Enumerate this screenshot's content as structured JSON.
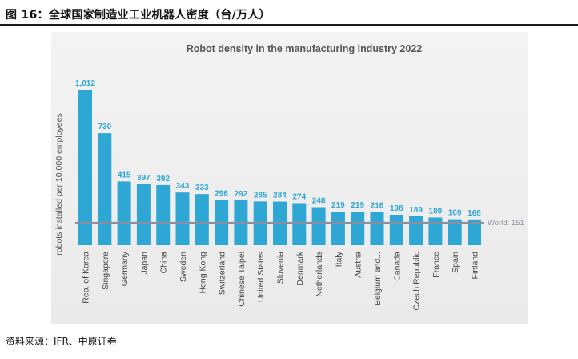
{
  "figure": {
    "caption": "图 16：全球国家制造业工业机器人密度（台/万人）",
    "source": "资料来源：IFR、中原证券"
  },
  "colors": {
    "bar": "#2ea7d4",
    "value_label": "#2ea7d4",
    "world_line": "#8a8fa0",
    "panel_bg": "#efefef"
  },
  "chart_data": {
    "type": "bar",
    "title": "Robot density in the manufacturing industry 2022",
    "xlabel": "",
    "ylabel": "robots installed per 10,000 employees",
    "categories": [
      "Rep. of Korea",
      "Singapore",
      "Germany",
      "Japan",
      "China",
      "Sweden",
      "Hong Kong",
      "Switzerland",
      "Chinese Taipei",
      "United States",
      "Slovenia",
      "Denmark",
      "Netherlands",
      "Italy",
      "Austria",
      "Belgium and...",
      "Canada",
      "Czech Republic",
      "France",
      "Spain",
      "Finland"
    ],
    "values": [
      1012,
      730,
      415,
      397,
      392,
      343,
      333,
      296,
      292,
      285,
      284,
      274,
      248,
      219,
      219,
      216,
      198,
      189,
      180,
      169,
      168
    ],
    "value_labels": [
      "1,012",
      "730",
      "415",
      "397",
      "392",
      "343",
      "333",
      "296",
      "292",
      "285",
      "284",
      "274",
      "248",
      "219",
      "219",
      "216",
      "198",
      "189",
      "180",
      "169",
      "168"
    ],
    "reference_line": {
      "label": "World: 151",
      "value": 151
    },
    "ylim": [
      0,
      1012
    ],
    "grid": false
  }
}
